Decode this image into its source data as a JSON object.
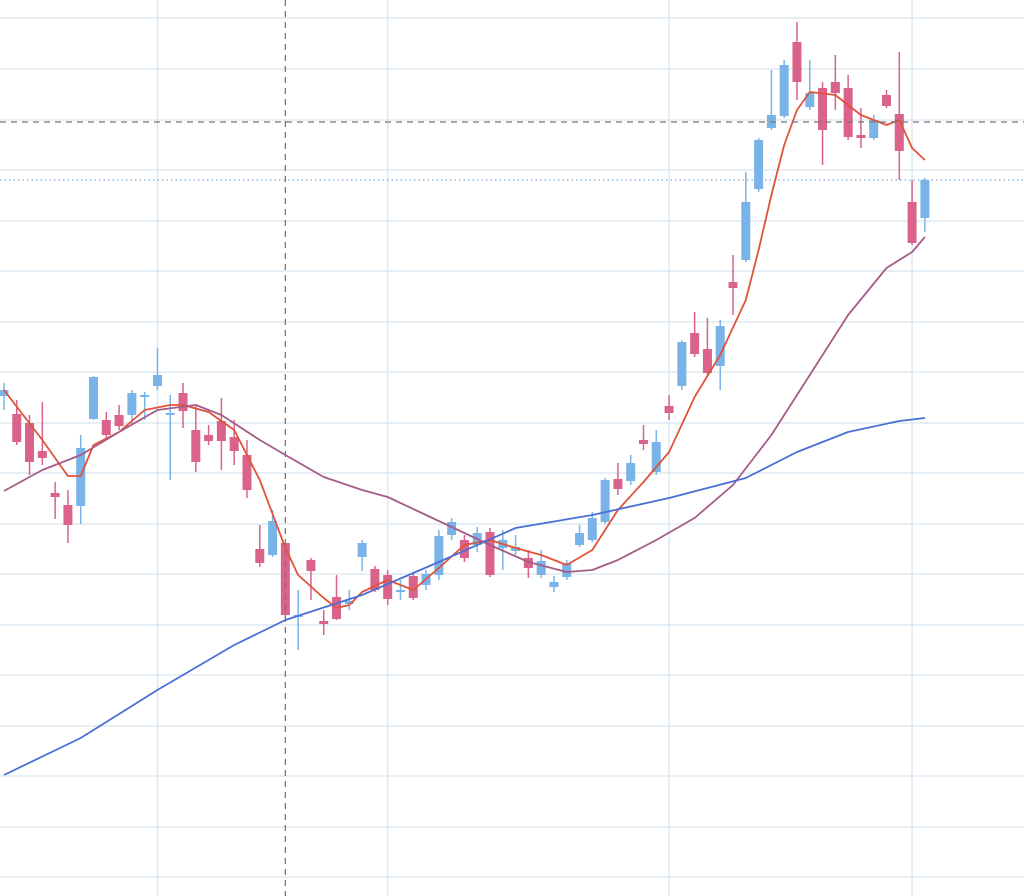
{
  "chart_data": {
    "type": "candlestick",
    "open": [
      504,
      486,
      477,
      449,
      407,
      395,
      394,
      481,
      480,
      485,
      485,
      503,
      514,
      485,
      507,
      470,
      465,
      479,
      463,
      445,
      351,
      345,
      357,
      283,
      340,
      279,
      303,
      296,
      343,
      331,
      325,
      308,
      324,
      315,
      325,
      365,
      360,
      355,
      368,
      352,
      349,
      342,
      325,
      313,
      323,
      355,
      360,
      378,
      421,
      419,
      460,
      428,
      494,
      514,
      567,
      551,
      534,
      618,
      640,
      711,
      772,
      784,
      858,
      793,
      812,
      818,
      812,
      765,
      762,
      805,
      786,
      698,
      682
    ],
    "high": [
      517,
      500,
      485,
      498,
      418,
      410,
      465,
      524,
      488,
      495,
      510,
      508,
      552,
      505,
      517,
      495,
      475,
      502,
      480,
      460,
      375,
      390,
      357,
      310,
      342,
      290,
      325,
      310,
      360,
      334,
      330,
      320,
      328,
      330,
      370,
      382,
      365,
      373,
      372,
      370,
      365,
      350,
      350,
      324,
      340,
      375,
      388,
      422,
      437,
      445,
      475,
      470,
      505,
      560,
      588,
      582,
      580,
      645,
      728,
      762,
      830,
      840,
      878,
      840,
      818,
      845,
      825,
      792,
      785,
      810,
      848,
      720,
      722
    ],
    "low": [
      490,
      455,
      425,
      435,
      381,
      357,
      376,
      480,
      460,
      470,
      475,
      480,
      510,
      420,
      472,
      428,
      455,
      430,
      435,
      402,
      333,
      343,
      283,
      250,
      300,
      265,
      280,
      290,
      329,
      308,
      295,
      300,
      300,
      310,
      320,
      360,
      338,
      348,
      323,
      330,
      345,
      322,
      322,
      308,
      320,
      353,
      358,
      376,
      405,
      415,
      450,
      425,
      480,
      510,
      543,
      525,
      510,
      585,
      638,
      708,
      770,
      782,
      800,
      790,
      735,
      790,
      760,
      752,
      760,
      792,
      720,
      655,
      668
    ],
    "close": [
      510,
      458,
      438,
      442,
      403,
      375,
      452,
      523,
      465,
      474,
      507,
      505,
      525,
      487,
      489,
      438,
      459,
      459,
      449,
      410,
      337,
      379,
      285,
      285,
      329,
      276,
      281,
      299,
      357,
      310,
      301,
      310,
      302,
      326,
      364,
      378,
      342,
      367,
      325,
      360,
      353,
      332,
      339,
      318,
      337,
      367,
      382,
      420,
      411,
      437,
      456,
      458,
      487,
      558,
      546,
      527,
      574,
      612,
      698,
      760,
      785,
      835,
      818,
      807,
      770,
      807,
      763,
      762,
      780,
      794,
      749,
      657,
      720
    ],
    "up_color": "#7ab3e8",
    "down_color": "#d9638a",
    "series": [
      {
        "color": "#e0533a",
        "x": [
          0,
          3,
          5,
          6,
          7,
          9,
          11,
          13,
          14,
          16,
          18,
          20,
          22,
          23,
          25,
          26,
          27,
          28,
          30,
          32,
          34,
          36,
          38,
          40,
          42,
          44,
          46,
          48,
          50,
          52,
          54,
          56,
          58,
          59,
          60,
          61,
          62,
          63,
          65,
          67,
          69,
          70,
          71,
          72
        ],
        "values": [
          510,
          460,
          424,
          424,
          455,
          468,
          490,
          495,
          495,
          488,
          470,
          420,
          352,
          325,
          302,
          292,
          295,
          308,
          320,
          310,
          332,
          355,
          360,
          352,
          345,
          335,
          350,
          390,
          418,
          448,
          503,
          545,
          600,
          650,
          705,
          755,
          790,
          808,
          805,
          785,
          775,
          780,
          752,
          740
        ]
      },
      {
        "color": "#a45d88",
        "x": [
          0,
          3,
          6,
          9,
          12,
          15,
          17,
          20,
          22,
          25,
          28,
          30,
          33,
          36,
          38,
          41,
          44,
          46,
          48,
          51,
          54,
          57,
          60,
          63,
          66,
          69,
          71,
          72
        ],
        "values": [
          409,
          430,
          445,
          468,
          490,
          495,
          485,
          460,
          445,
          423,
          410,
          403,
          385,
          367,
          355,
          338,
          328,
          330,
          340,
          360,
          382,
          415,
          465,
          525,
          585,
          632,
          648,
          663
        ]
      },
      {
        "color": "#4a6fd6",
        "x": [
          0,
          6,
          12,
          18,
          22,
          28,
          34,
          40,
          46,
          52,
          58,
          62,
          66,
          70,
          72
        ],
        "values": [
          125,
          162,
          210,
          255,
          280,
          305,
          338,
          372,
          385,
          402,
          422,
          448,
          468,
          479,
          482
        ]
      }
    ],
    "xlim": [
      -0.31,
      79.75
    ],
    "xticks": [
      12,
      30,
      52,
      71
    ],
    "ylim": [
      4,
      900
    ],
    "yticks": [
      23,
      73,
      124,
      174,
      225,
      275,
      326,
      376,
      427,
      477,
      528,
      578,
      629,
      679,
      730,
      780,
      831,
      882
    ],
    "grid": true,
    "grid_color": "#dde8f3",
    "crosshair": {
      "x": 22,
      "y": 778
    },
    "last_price": 720
  }
}
